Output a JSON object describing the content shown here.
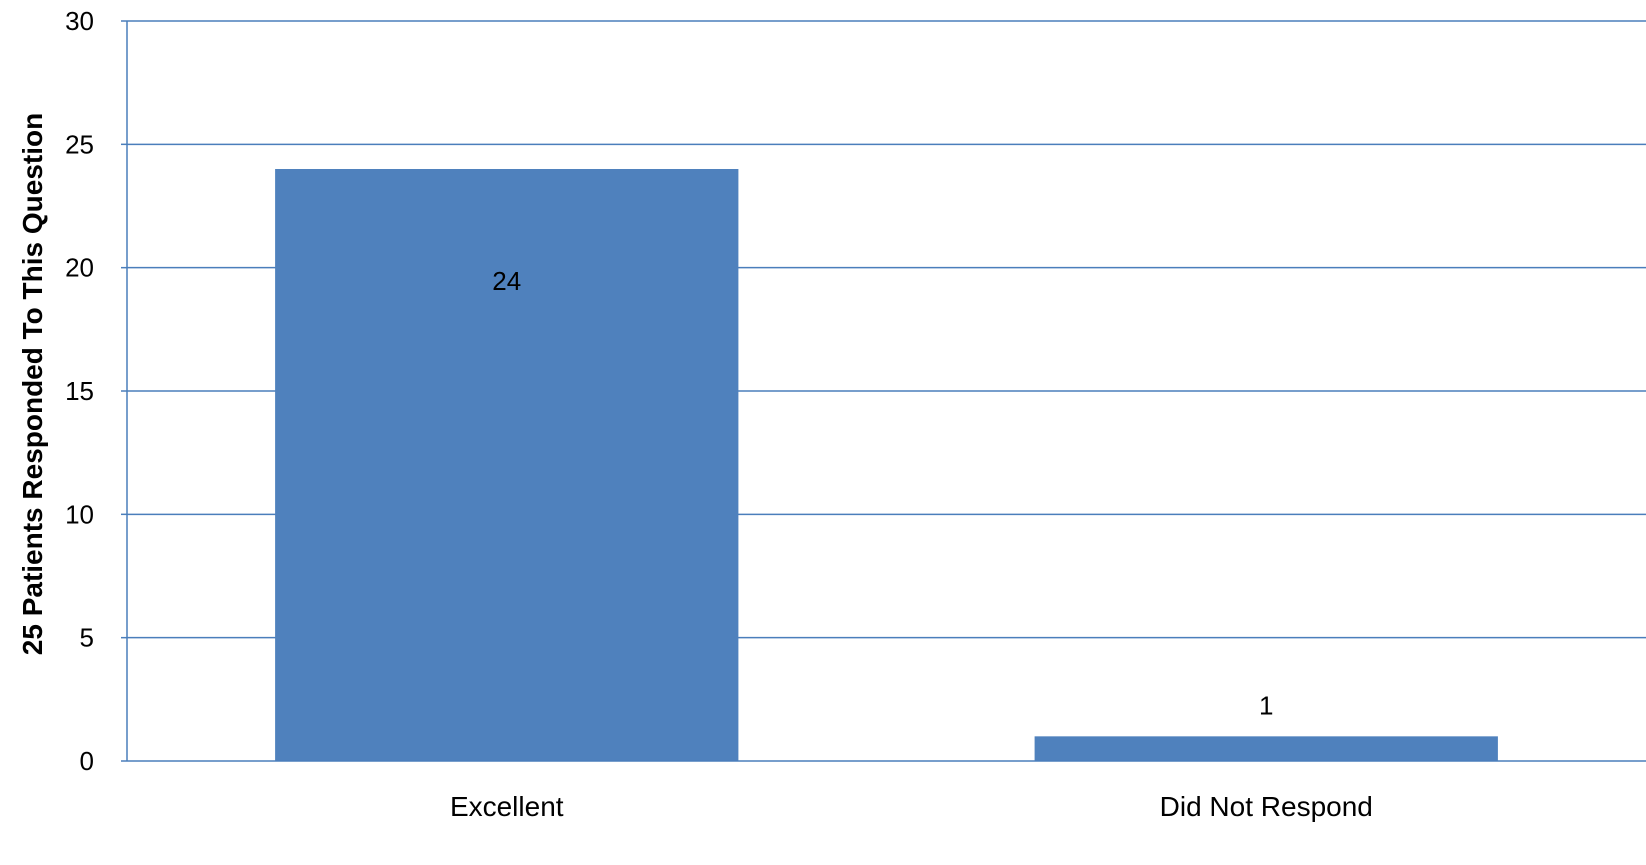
{
  "chart_data": {
    "type": "bar",
    "title": "",
    "xlabel": "",
    "ylabel": "25 Patients Responded To This Question",
    "categories": [
      "Excellent",
      "Did Not Respond"
    ],
    "series": [
      {
        "values": [
          24,
          1
        ],
        "color": "#4F81BD"
      }
    ],
    "data_labels": [
      "24",
      "1"
    ],
    "ylim": [
      0,
      30
    ],
    "yticks": [
      0,
      5,
      10,
      15,
      20,
      25,
      30
    ],
    "ytick_labels": [
      "0",
      "5",
      "10",
      "15",
      "20",
      "25",
      "30"
    ],
    "grid": true,
    "grid_color": "#4A7EBB",
    "legend": "none"
  }
}
